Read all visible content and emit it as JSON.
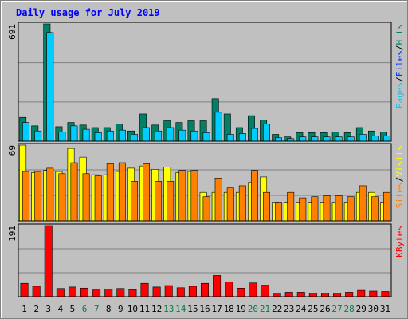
{
  "chart_data": {
    "type": "bar",
    "title": "Daily usage for July 2019",
    "days": [
      {
        "label": "1",
        "weekend": false
      },
      {
        "label": "2",
        "weekend": false
      },
      {
        "label": "3",
        "weekend": false
      },
      {
        "label": "4",
        "weekend": false
      },
      {
        "label": "5",
        "weekend": false
      },
      {
        "label": "6",
        "weekend": true
      },
      {
        "label": "7",
        "weekend": true
      },
      {
        "label": "8",
        "weekend": false
      },
      {
        "label": "9",
        "weekend": false
      },
      {
        "label": "10",
        "weekend": false
      },
      {
        "label": "11",
        "weekend": false
      },
      {
        "label": "12",
        "weekend": false
      },
      {
        "label": "13",
        "weekend": true
      },
      {
        "label": "14",
        "weekend": true
      },
      {
        "label": "15",
        "weekend": false
      },
      {
        "label": "16",
        "weekend": false
      },
      {
        "label": "17",
        "weekend": false
      },
      {
        "label": "18",
        "weekend": false
      },
      {
        "label": "19",
        "weekend": false
      },
      {
        "label": "20",
        "weekend": true
      },
      {
        "label": "21",
        "weekend": true
      },
      {
        "label": "22",
        "weekend": false
      },
      {
        "label": "23",
        "weekend": false
      },
      {
        "label": "24",
        "weekend": false
      },
      {
        "label": "25",
        "weekend": false
      },
      {
        "label": "26",
        "weekend": false
      },
      {
        "label": "27",
        "weekend": true
      },
      {
        "label": "28",
        "weekend": true
      },
      {
        "label": "29",
        "weekend": false
      },
      {
        "label": "30",
        "weekend": false
      },
      {
        "label": "31",
        "weekend": false
      }
    ],
    "panels": [
      {
        "max_label": "691",
        "ymax": 691,
        "legend": [
          {
            "text": "Pages",
            "color": "#00ccff"
          },
          {
            "text": "/",
            "color": "#000000"
          },
          {
            "text": "Files",
            "color": "#0033ff"
          },
          {
            "text": "/",
            "color": "#000000"
          },
          {
            "text": "Hits",
            "color": "#008066"
          }
        ],
        "series": [
          {
            "key": "hits",
            "color": "#008066",
            "values": [
              140,
              90,
              691,
              85,
              110,
              95,
              80,
              80,
              100,
              60,
              160,
              95,
              120,
              110,
              120,
              120,
              250,
              160,
              80,
              150,
              125,
              40,
              25,
              50,
              50,
              50,
              55,
              50,
              80,
              60,
              55
            ]
          },
          {
            "key": "files",
            "color": "#00ccff",
            "values": [
              110,
              60,
              640,
              55,
              90,
              70,
              50,
              60,
              65,
              40,
              80,
              60,
              80,
              65,
              60,
              50,
              170,
              40,
              45,
              75,
              100,
              20,
              15,
              25,
              25,
              25,
              25,
              25,
              40,
              30,
              30
            ]
          }
        ]
      },
      {
        "max_label": "69",
        "ymax": 69,
        "legend": [
          {
            "text": "Sites",
            "color": "#ff8000"
          },
          {
            "text": "/",
            "color": "#000000"
          },
          {
            "text": "Visits",
            "color": "#ffff00"
          }
        ],
        "series": [
          {
            "key": "visits",
            "color": "#ffff00",
            "values": [
              69,
              44,
              46,
              45,
              66,
              58,
              42,
              42,
              45,
              48,
              50,
              47,
              49,
              44,
              45,
              26,
              26,
              26,
              26,
              35,
              40,
              17,
              17,
              17,
              17,
              17,
              17,
              17,
              26,
              26,
              17
            ]
          },
          {
            "key": "sites",
            "color": "#ff8000",
            "values": [
              45,
              45,
              48,
              43,
              53,
              43,
              41,
              52,
              53,
              36,
              52,
              36,
              36,
              46,
              46,
              22,
              39,
              30,
              32,
              46,
              26,
              17,
              26,
              21,
              22,
              23,
              23,
              22,
              32,
              22,
              26
            ]
          }
        ]
      },
      {
        "max_label": "191",
        "ymax": 191,
        "legend": [
          {
            "text": "KBytes",
            "color": "#ff0000"
          }
        ],
        "series": [
          {
            "key": "kbytes",
            "color": "#ff0000",
            "values": [
              36,
              28,
              191,
              22,
              26,
              23,
              18,
              20,
              22,
              19,
              36,
              26,
              30,
              24,
              28,
              36,
              57,
              40,
              23,
              37,
              31,
              10,
              12,
              12,
              10,
              10,
              10,
              12,
              17,
              15,
              14
            ]
          }
        ]
      }
    ],
    "colors": {
      "background": "#c0c0c0",
      "title": "#0000ff",
      "grid": "#808080",
      "weekday_label": "#000000",
      "weekend_label": "#008040"
    }
  }
}
